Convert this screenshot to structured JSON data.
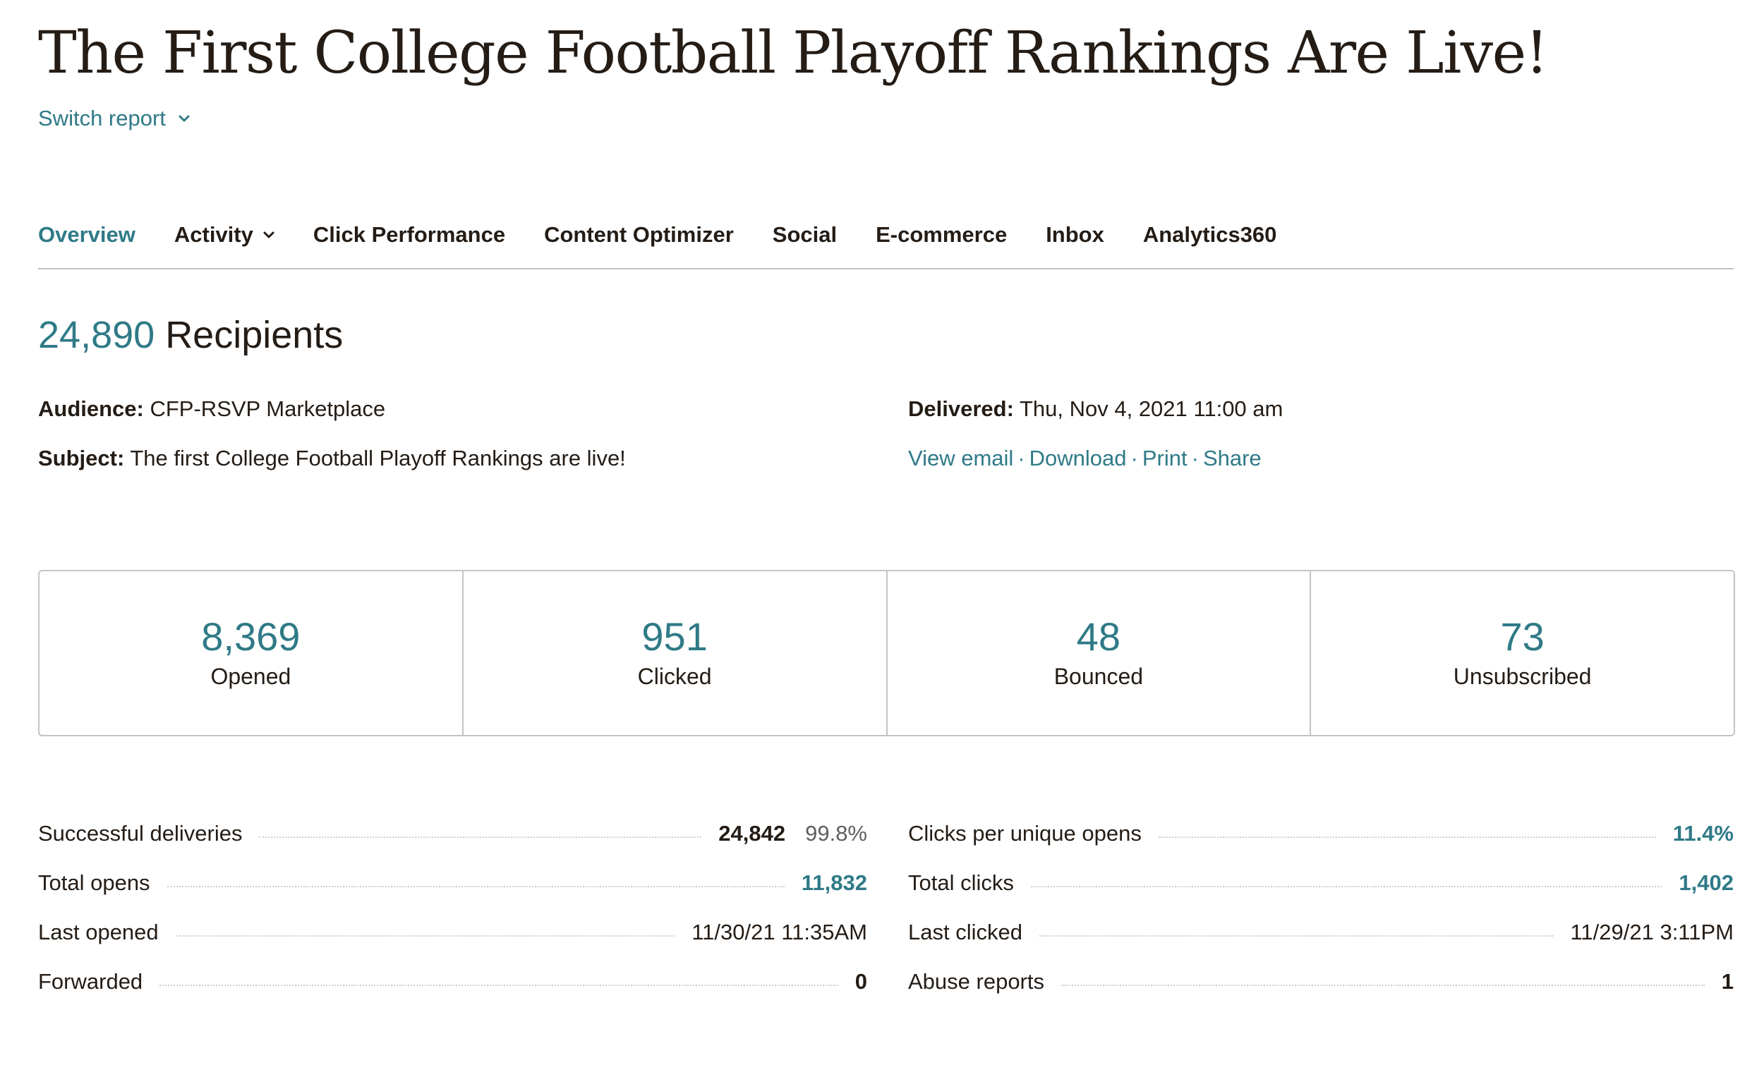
{
  "header": {
    "title": "The First College Football Playoff Rankings Are Live!",
    "switch_report": "Switch report"
  },
  "tabs": [
    {
      "label": "Overview",
      "active": true
    },
    {
      "label": "Activity",
      "has_dropdown": true
    },
    {
      "label": "Click Performance"
    },
    {
      "label": "Content Optimizer"
    },
    {
      "label": "Social"
    },
    {
      "label": "E-commerce"
    },
    {
      "label": "Inbox"
    },
    {
      "label": "Analytics360"
    }
  ],
  "summary": {
    "recipients_count": "24,890",
    "recipients_label": "Recipients",
    "audience_label": "Audience:",
    "audience_value": "CFP-RSVP Marketplace",
    "subject_label": "Subject:",
    "subject_value": "The first College Football Playoff Rankings are live!",
    "delivered_label": "Delivered:",
    "delivered_value": "Thu, Nov 4, 2021 11:00 am",
    "links": {
      "view_email": "View email",
      "download": "Download",
      "print": "Print",
      "share": "Share",
      "separator": "·"
    }
  },
  "stats": [
    {
      "value": "8,369",
      "label": "Opened"
    },
    {
      "value": "951",
      "label": "Clicked"
    },
    {
      "value": "48",
      "label": "Bounced"
    },
    {
      "value": "73",
      "label": "Unsubscribed"
    }
  ],
  "metrics_left": [
    {
      "name": "Successful deliveries",
      "value": "24,842",
      "pct": "99.8%"
    },
    {
      "name": "Total opens",
      "value": "11,832"
    },
    {
      "name": "Last opened",
      "value": "11/30/21 11:35AM"
    },
    {
      "name": "Forwarded",
      "value": "0"
    }
  ],
  "metrics_right": [
    {
      "name": "Clicks per unique opens",
      "value": "11.4%"
    },
    {
      "name": "Total clicks",
      "value": "1,402"
    },
    {
      "name": "Last clicked",
      "value": "11/29/21 3:11PM"
    },
    {
      "name": "Abuse reports",
      "value": "1"
    }
  ],
  "colors": {
    "accent": "#2f7a87",
    "text": "#241c15",
    "border": "#c4c4c4"
  },
  "icons": {
    "switch_report": "chevron-down-icon",
    "activity_tab": "chevron-down-icon"
  }
}
